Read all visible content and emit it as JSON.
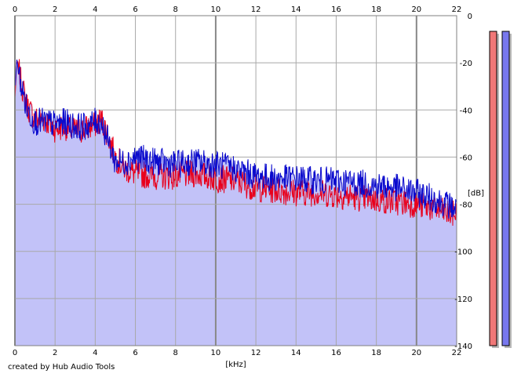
{
  "footer": {
    "credit": "created by Hub Audio Tools"
  },
  "chart_data": {
    "type": "area",
    "xlabel": "[kHz]",
    "ylabel": "[dB]",
    "xlim": [
      0,
      22
    ],
    "ylim": [
      -140,
      0
    ],
    "x_ticks": [
      "0",
      "2",
      "4",
      "6",
      "8",
      "10",
      "12",
      "14",
      "16",
      "18",
      "20",
      "22"
    ],
    "y_ticks": [
      "0",
      "-20",
      "-40",
      "-60",
      "-80",
      "-100",
      "-120",
      "-140"
    ],
    "grid": true,
    "colors": {
      "left": "#e8001c",
      "right": "#0a0acd",
      "fill": "#c2c2f8",
      "grid": "#a8a8a8",
      "meter_left": "#f07878",
      "meter_right": "#7878ee"
    },
    "series": [
      {
        "name": "",
        "color": "#e8001c",
        "x": [
          0,
          0.1,
          0.3,
          0.6,
          1,
          1.5,
          2,
          2.5,
          3,
          3.5,
          4,
          4.3,
          4.6,
          5,
          5.5,
          6,
          7,
          8,
          9,
          10,
          11,
          12,
          13,
          14,
          15,
          16,
          17,
          18,
          19,
          20,
          21,
          21.5,
          22
        ],
        "y": [
          -35,
          -19,
          -28,
          -38,
          -44,
          -44,
          -48,
          -47,
          -49,
          -48,
          -46,
          -44,
          -50,
          -60,
          -65,
          -67,
          -68,
          -68,
          -67,
          -69,
          -70,
          -73,
          -74,
          -75,
          -75,
          -76,
          -77,
          -78,
          -79,
          -80,
          -82,
          -84,
          -84
        ]
      },
      {
        "name": "",
        "color": "#0a0acd",
        "x": [
          0,
          0.1,
          0.3,
          0.6,
          1,
          1.5,
          2,
          2.5,
          3,
          3.5,
          4,
          4.3,
          4.6,
          5,
          5.5,
          6,
          7,
          8,
          9,
          10,
          11,
          12,
          13,
          14,
          15,
          16,
          17,
          18,
          19,
          20,
          21,
          21.5,
          22
        ],
        "y": [
          -30,
          -20,
          -29,
          -40,
          -45,
          -45,
          -46,
          -45,
          -47,
          -47,
          -45,
          -45,
          -52,
          -62,
          -62,
          -60,
          -62,
          -63,
          -62,
          -63,
          -65,
          -68,
          -69,
          -69,
          -70,
          -70,
          -71,
          -72,
          -73,
          -75,
          -78,
          -80,
          -82
        ]
      }
    ],
    "meters": {
      "left": -140,
      "right": -140
    }
  }
}
